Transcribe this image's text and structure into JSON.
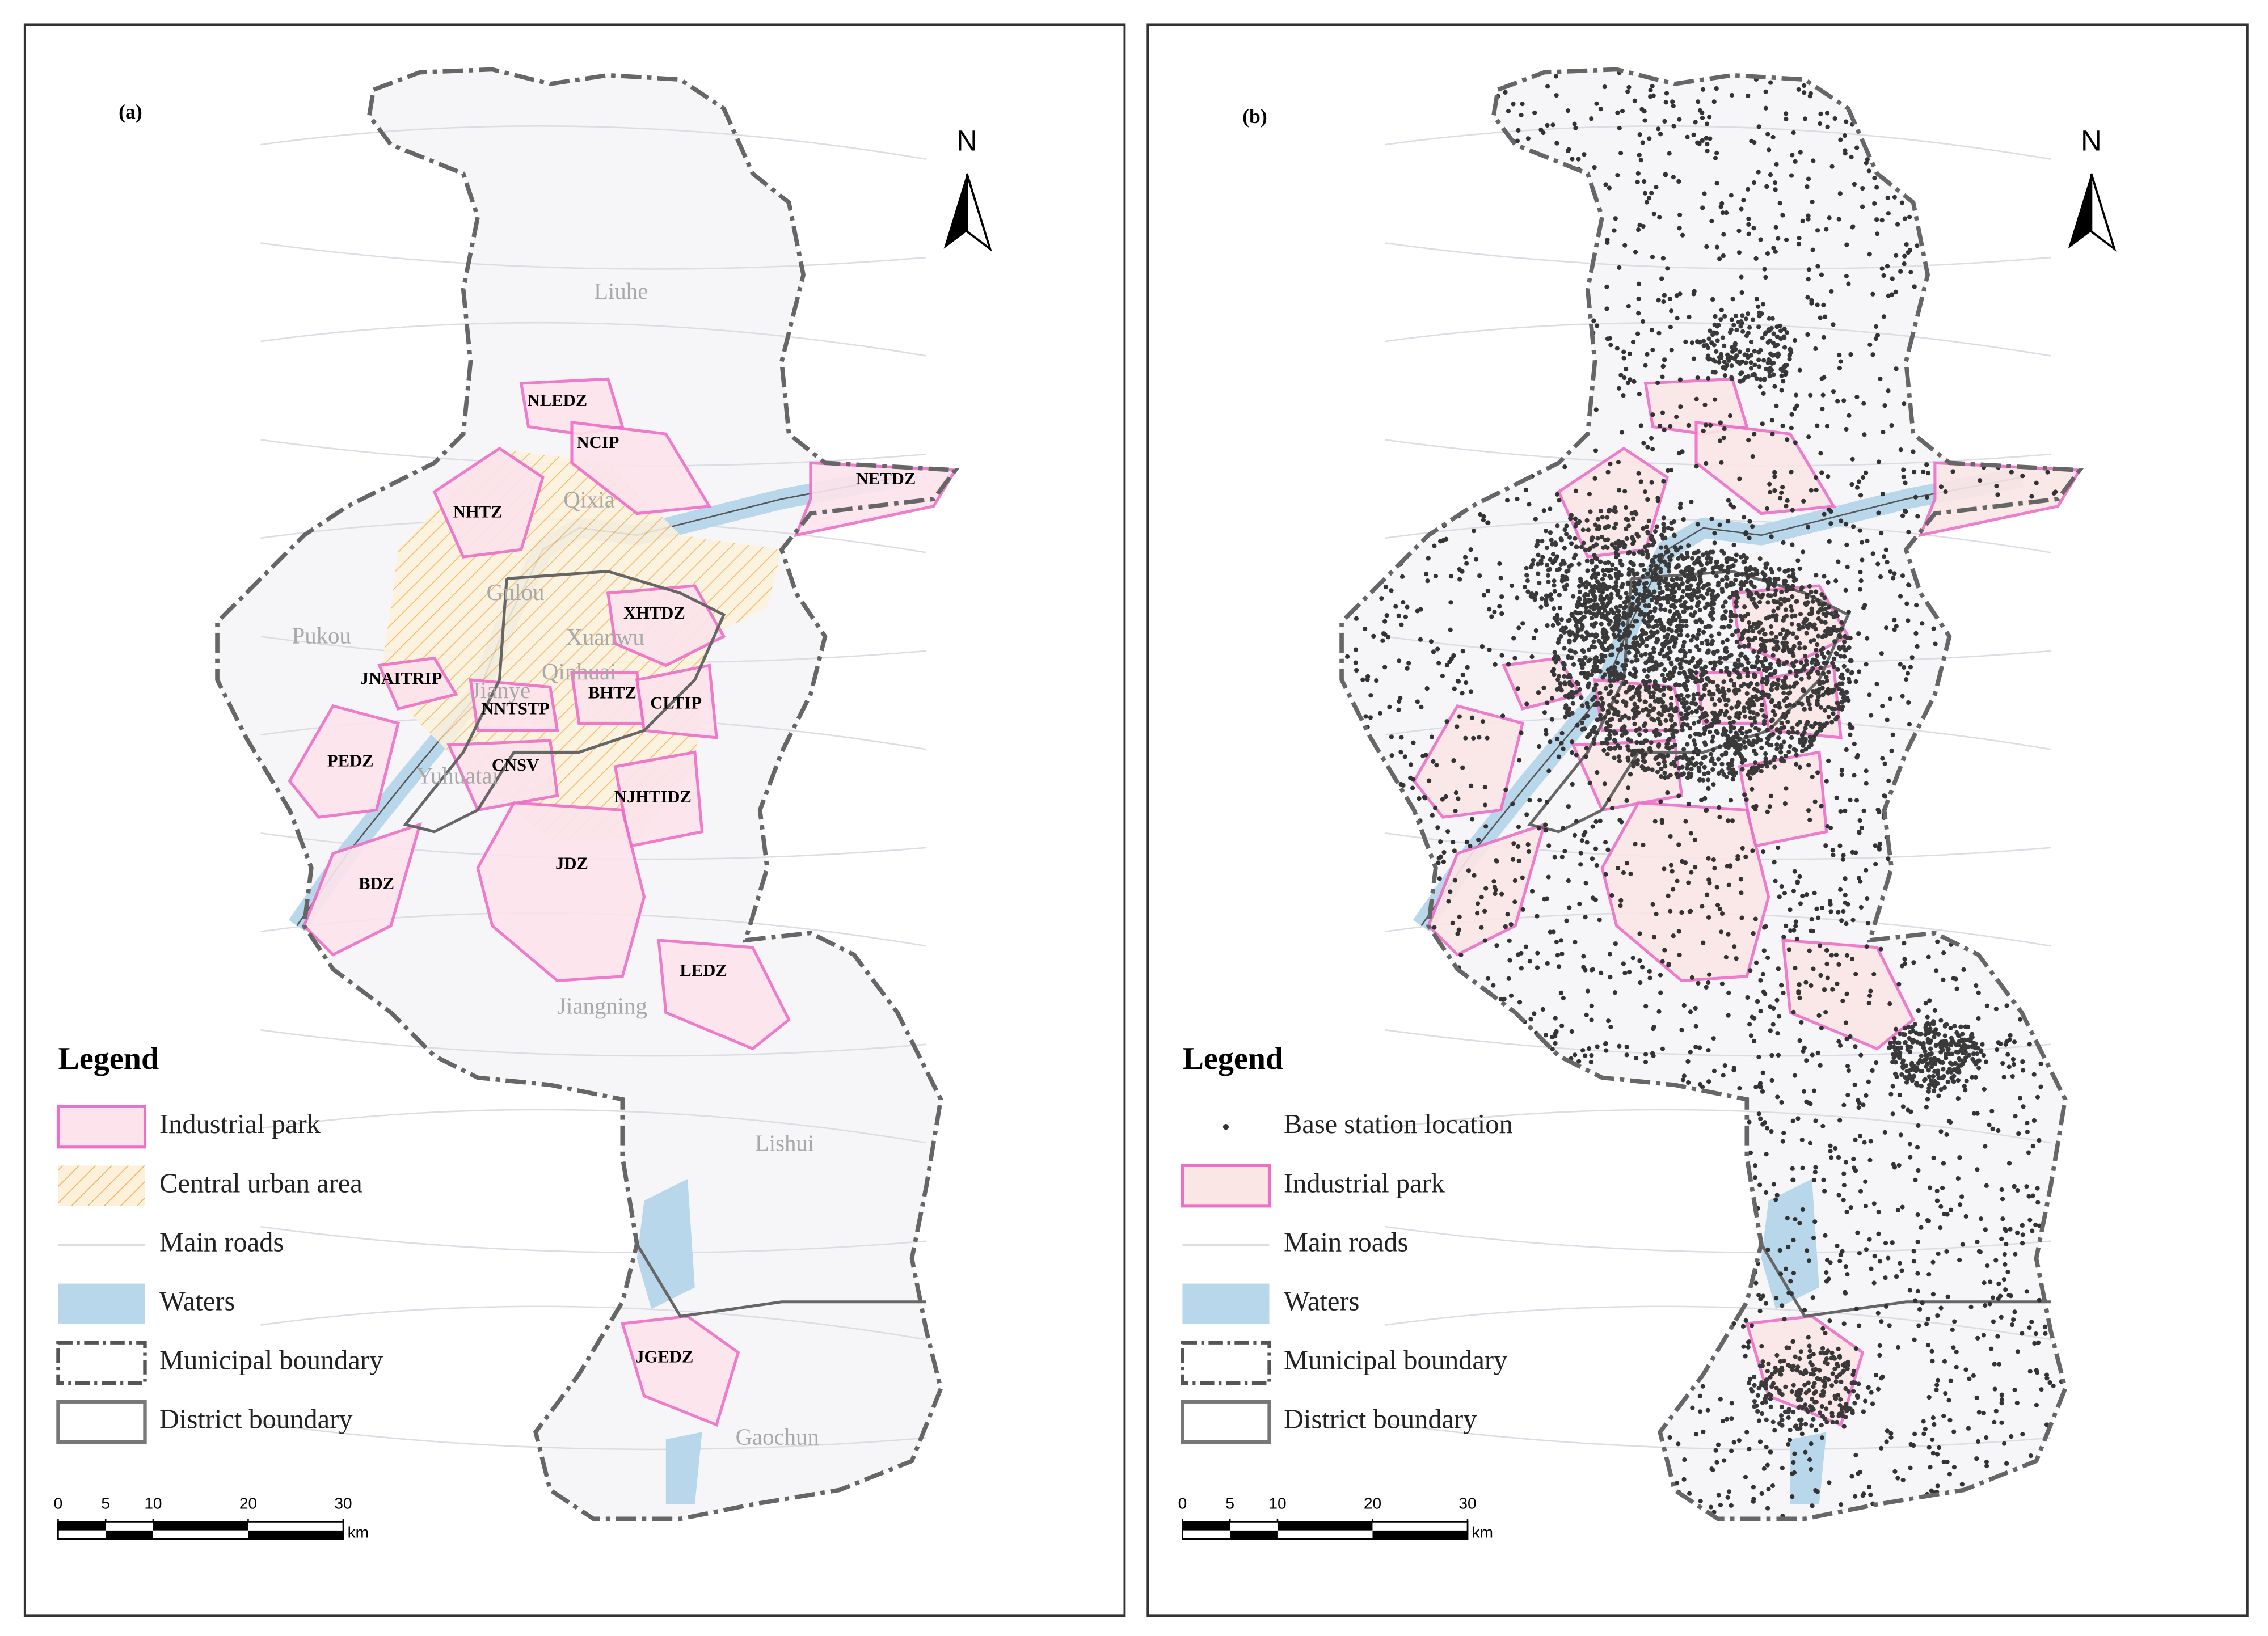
{
  "panels": [
    {
      "label": "(a)",
      "north": "N",
      "districts": [
        "Liuhe",
        "Qixia",
        "Gulou",
        "Pukou",
        "Xuanwu",
        "Qinhuai",
        "Jianye",
        "Yuhuatai",
        "Jiangning",
        "Lishui",
        "Gaochun"
      ],
      "parks": [
        "NLEDZ",
        "NCIP",
        "NETDZ",
        "NHTZ",
        "XHTDZ",
        "JNAITRIP",
        "NNTSTP",
        "BHTZ",
        "CLTIP",
        "PEDZ",
        "CNSV",
        "NJHTIDZ",
        "JDZ",
        "BDZ",
        "LEDZ",
        "JGEDZ"
      ],
      "legend": {
        "title": "Legend",
        "items": [
          "Industrial park",
          "Central urban area",
          "Main roads",
          "Waters",
          "Municipal boundary",
          "District boundary"
        ]
      },
      "scale": {
        "ticks": [
          0,
          5,
          10,
          20,
          30
        ],
        "unit": "km"
      }
    },
    {
      "label": "(b)",
      "north": "N",
      "legend": {
        "title": "Legend",
        "items": [
          "Base station location",
          "Industrial park",
          "Main roads",
          "Waters",
          "Municipal boundary",
          "District boundary"
        ]
      },
      "scale": {
        "ticks": [
          0,
          5,
          10,
          20,
          30
        ],
        "unit": "km"
      }
    }
  ]
}
